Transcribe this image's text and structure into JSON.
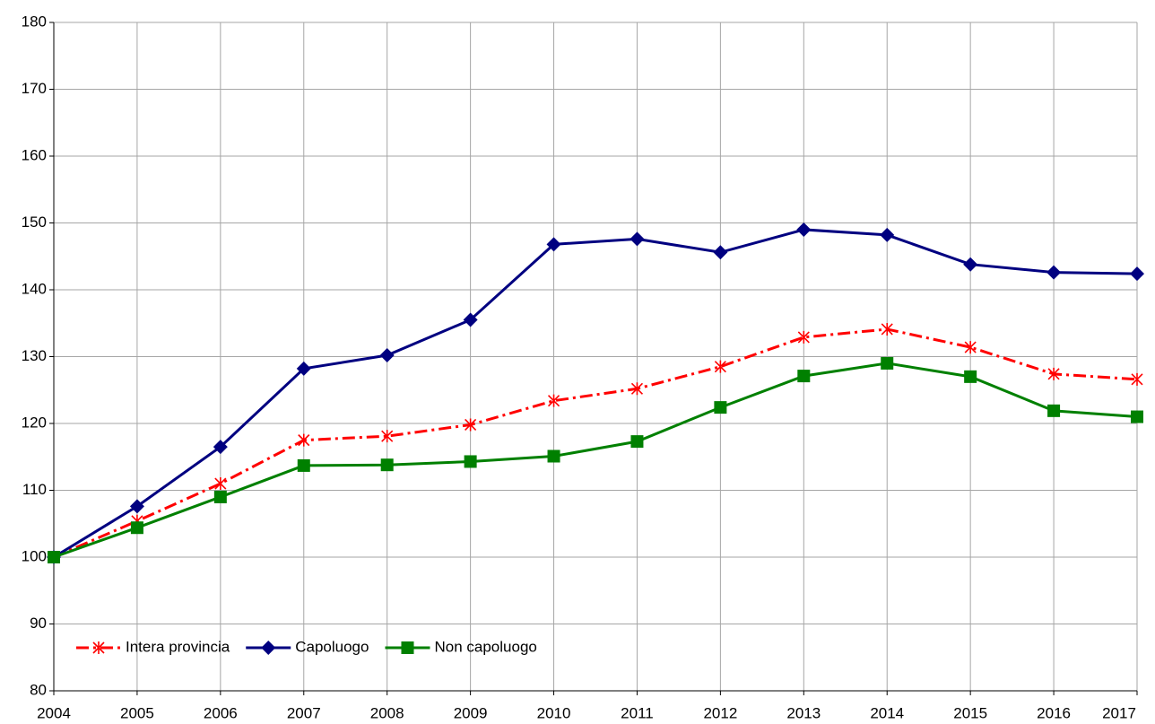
{
  "chart_data": {
    "type": "line",
    "x": [
      2004,
      2005,
      2006,
      2007,
      2008,
      2009,
      2010,
      2011,
      2012,
      2013,
      2014,
      2015,
      2016,
      2017
    ],
    "xlim": [
      2004,
      2017
    ],
    "xticks": [
      2004,
      2005,
      2006,
      2007,
      2008,
      2009,
      2010,
      2011,
      2012,
      2013,
      2014,
      2015,
      2016,
      2017
    ],
    "ylim": [
      80,
      180
    ],
    "yticks": [
      80,
      90,
      100,
      110,
      120,
      130,
      140,
      150,
      160,
      170,
      180
    ],
    "grid": true,
    "legend": "lower left",
    "series": [
      {
        "name": "Intera provincia",
        "color": "#ff0000",
        "marker": "star",
        "linestyle": "dashdot",
        "values": [
          100,
          105.4,
          111.0,
          117.5,
          118.1,
          119.8,
          123.4,
          125.2,
          128.5,
          132.9,
          134.1,
          131.4,
          127.4,
          126.6
        ]
      },
      {
        "name": "Capoluogo",
        "color": "#000080",
        "marker": "diamond",
        "linestyle": "solid",
        "values": [
          100,
          107.6,
          116.5,
          128.2,
          130.2,
          135.5,
          146.8,
          147.6,
          145.6,
          149.0,
          148.2,
          143.8,
          142.6,
          142.4
        ]
      },
      {
        "name": "Non capoluogo",
        "color": "#008000",
        "marker": "square",
        "linestyle": "solid",
        "values": [
          100,
          104.4,
          109.0,
          113.7,
          113.8,
          114.3,
          115.1,
          117.3,
          122.4,
          127.1,
          129.0,
          127.0,
          121.9,
          121.0
        ]
      }
    ]
  }
}
